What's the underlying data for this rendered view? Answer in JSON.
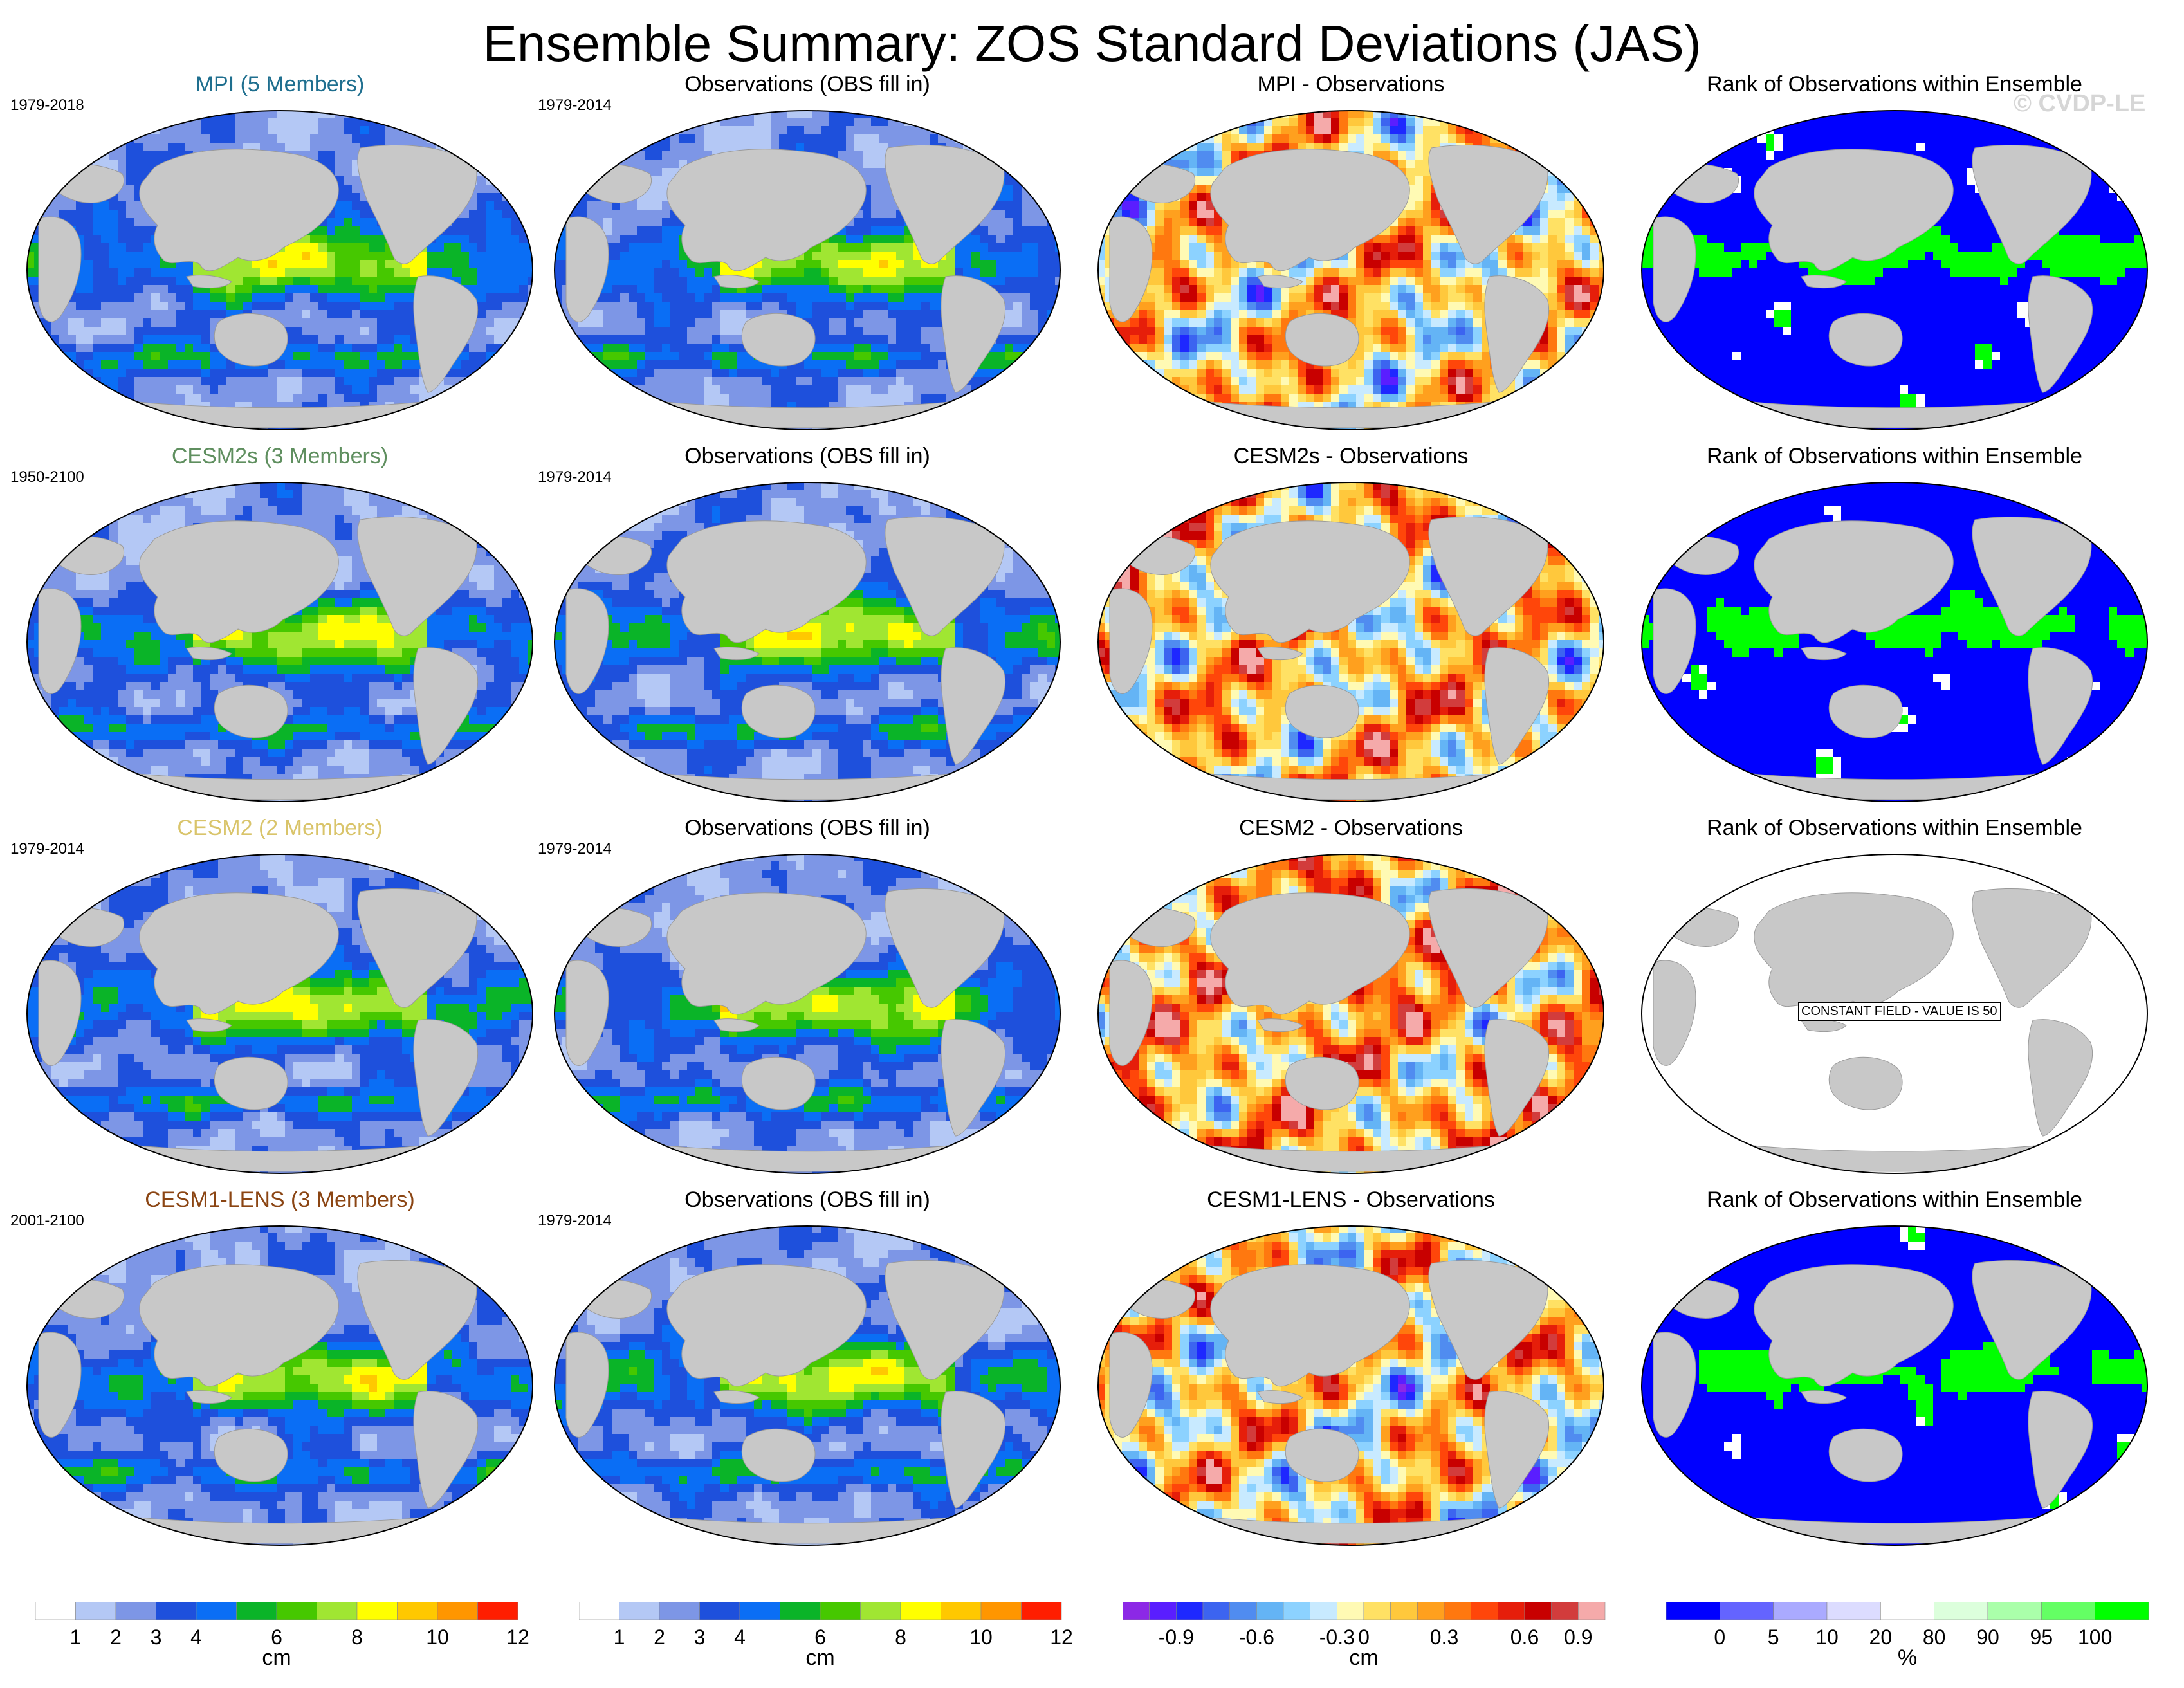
{
  "figure": {
    "title": "Ensemble Summary: ZOS Standard Deviations (JAS)",
    "watermark": "© CVDP-LE"
  },
  "rows": [
    {
      "model_title": "MPI (5 Members)",
      "model_color": "#1f6f8f",
      "model_period": "1979-2018",
      "obs_title": "Observations (OBS fill in)",
      "obs_period": "1979-2014",
      "diff_title": "MPI - Observations",
      "rank_title": "Rank of Observations within Ensemble",
      "rank_mode": "field"
    },
    {
      "model_title": "CESM2s (3 Members)",
      "model_color": "#5f8f5f",
      "model_period": "1950-2100",
      "obs_title": "Observations (OBS fill in)",
      "obs_period": "1979-2014",
      "diff_title": "CESM2s - Observations",
      "rank_title": "Rank of Observations within Ensemble",
      "rank_mode": "field"
    },
    {
      "model_title": "CESM2 (2 Members)",
      "model_color": "#d9c46a",
      "model_period": "1979-2014",
      "obs_title": "Observations (OBS fill in)",
      "obs_period": "1979-2014",
      "diff_title": "CESM2 - Observations",
      "rank_title": "Rank of Observations within Ensemble",
      "rank_mode": "constant",
      "rank_note": "CONSTANT FIELD - VALUE IS 50"
    },
    {
      "model_title": "CESM1-LENS (3 Members)",
      "model_color": "#8b4513",
      "model_period": "2001-2100",
      "obs_title": "Observations (OBS fill in)",
      "obs_period": "1979-2014",
      "diff_title": "CESM1-LENS - Observations",
      "rank_title": "Rank of Observations within Ensemble",
      "rank_mode": "field"
    }
  ],
  "colorbars": {
    "sd": {
      "unit": "cm",
      "colors": [
        "#ffffff",
        "#b4c8f5",
        "#7d96e6",
        "#1e50dc",
        "#0a6ef5",
        "#0ab428",
        "#46c800",
        "#a0e632",
        "#ffff00",
        "#ffc800",
        "#ff9600",
        "#ff1e00"
      ],
      "tick_labels": [
        "1",
        "2",
        "3",
        "4",
        "6",
        "8",
        "10",
        "12"
      ],
      "tick_boundaries": [
        1,
        2,
        3,
        4,
        6,
        8,
        10,
        12
      ]
    },
    "diff": {
      "unit": "cm",
      "colors": [
        "#8c28e6",
        "#5a1eff",
        "#1e28ff",
        "#3c64f0",
        "#508cf0",
        "#64b4f5",
        "#8cd2ff",
        "#c8eaff",
        "#fffab4",
        "#ffe164",
        "#ffc83c",
        "#ffa01e",
        "#ff780f",
        "#ff460a",
        "#e61e0a",
        "#c80000",
        "#d23c3c",
        "#f5aaaa"
      ],
      "tick_labels": [
        "-0.9",
        "-0.6",
        "-0.3",
        "0",
        "0.3",
        "0.6",
        "0.9"
      ],
      "tick_boundaries": [
        2,
        5,
        8,
        9,
        12,
        15,
        17
      ]
    },
    "rank": {
      "unit": "%",
      "colors": [
        "#0000ff",
        "#6464ff",
        "#aaaaff",
        "#dcdcff",
        "#ffffff",
        "#dcffdc",
        "#aaffaa",
        "#64ff64",
        "#00ff00"
      ],
      "tick_labels": [
        "0",
        "5",
        "10",
        "20",
        "80",
        "90",
        "95",
        "100"
      ],
      "tick_boundaries": [
        1,
        2,
        3,
        4,
        5,
        6,
        7,
        8
      ]
    }
  },
  "map_legend": {
    "land_color": "#c8c8c8",
    "ocean_outline": "#000000"
  }
}
